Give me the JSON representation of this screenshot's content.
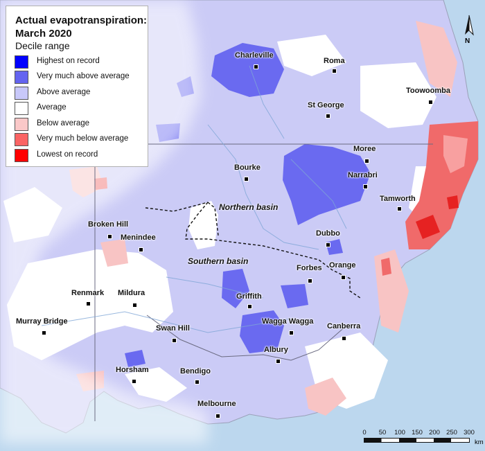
{
  "legend": {
    "title_line1": "Actual evapotranspiration:",
    "title_line2": "March 2020",
    "subtitle": "Decile range",
    "items": [
      {
        "label": "Highest on record",
        "color": "#0000ff"
      },
      {
        "label": "Very much above average",
        "color": "#6464f0"
      },
      {
        "label": "Above average",
        "color": "#c8c8fa"
      },
      {
        "label": "Average",
        "color": "#ffffff"
      },
      {
        "label": "Below average",
        "color": "#fac8c8"
      },
      {
        "label": "Very much below average",
        "color": "#fa6464"
      },
      {
        "label": "Lowest on record",
        "color": "#ff0000"
      }
    ]
  },
  "places": [
    "Charleville",
    "Roma",
    "Toowoomba",
    "St George",
    "Moree",
    "Bourke",
    "Narrabri",
    "Tamworth",
    "Broken Hill",
    "Menindee",
    "Dubbo",
    "Forbes",
    "Orange",
    "Renmark",
    "Mildura",
    "Griffith",
    "Wagga Wagga",
    "Murray Bridge",
    "Swan Hill",
    "Canberra",
    "Albury",
    "Horsham",
    "Bendigo",
    "Melbourne"
  ],
  "basins": {
    "north": "Northern basin",
    "south": "Southern basin"
  },
  "north_arrow": "N",
  "scale": {
    "ticks": [
      "0",
      "50",
      "100",
      "150",
      "200",
      "250",
      "300"
    ],
    "units": "km"
  }
}
